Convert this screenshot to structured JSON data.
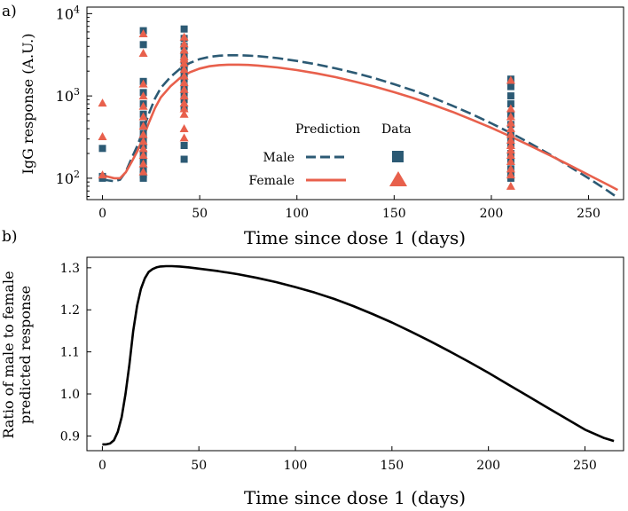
{
  "chart_data": [
    {
      "panel": "a)",
      "type": "line+scatter",
      "yscale": "log",
      "xlabel": "Time since dose 1 (days)",
      "ylabel": "IgG response (A.U.)",
      "xlim": [
        -8,
        268
      ],
      "ylim": [
        55,
        12000
      ],
      "xticks": [
        0,
        50,
        100,
        150,
        200,
        250
      ],
      "yticks": [
        {
          "value": 100,
          "base": "10",
          "exp": "2"
        },
        {
          "value": 1000,
          "base": "10",
          "exp": "3"
        },
        {
          "value": 10000,
          "base": "10",
          "exp": "4"
        }
      ],
      "legend": {
        "position": "center-right",
        "prediction_header": "Prediction",
        "data_header": "Data",
        "entries": [
          {
            "label": "Male",
            "line_style": "dashed",
            "marker": "square",
            "color": "#2c5a74"
          },
          {
            "label": "Female",
            "line_style": "solid",
            "marker": "triangle",
            "color": "#e8604c"
          }
        ]
      },
      "series": [
        {
          "name": "Male prediction",
          "color": "#2c5a74",
          "style": "dashed",
          "x": [
            0,
            3,
            6,
            9,
            12,
            15,
            18,
            21,
            24,
            27,
            30,
            35,
            40,
            45,
            50,
            55,
            60,
            65,
            70,
            75,
            80,
            90,
            100,
            110,
            120,
            130,
            140,
            150,
            160,
            170,
            180,
            190,
            200,
            210,
            220,
            230,
            240,
            250,
            260,
            265
          ],
          "y": [
            97,
            94,
            92,
            96,
            120,
            175,
            250,
            390,
            620,
            930,
            1250,
            1700,
            2150,
            2520,
            2800,
            2980,
            3080,
            3120,
            3120,
            3090,
            3040,
            2880,
            2660,
            2420,
            2160,
            1900,
            1640,
            1390,
            1160,
            950,
            760,
            600,
            465,
            355,
            265,
            195,
            140,
            100,
            70,
            58
          ]
        },
        {
          "name": "Female prediction",
          "color": "#e8604c",
          "style": "solid",
          "x": [
            0,
            3,
            6,
            9,
            12,
            15,
            18,
            21,
            24,
            27,
            30,
            35,
            40,
            45,
            50,
            55,
            60,
            65,
            70,
            75,
            80,
            90,
            100,
            110,
            120,
            130,
            140,
            150,
            160,
            170,
            180,
            190,
            200,
            210,
            220,
            230,
            240,
            250,
            260,
            265
          ],
          "y": [
            110,
            104,
            100,
            100,
            118,
            158,
            215,
            315,
            480,
            710,
            960,
            1310,
            1660,
            1940,
            2150,
            2290,
            2370,
            2400,
            2400,
            2380,
            2340,
            2220,
            2060,
            1880,
            1690,
            1490,
            1300,
            1110,
            940,
            780,
            640,
            515,
            410,
            320,
            248,
            190,
            145,
            110,
            83,
            72
          ]
        }
      ],
      "scatter": [
        {
          "name": "Male data",
          "marker": "square",
          "color": "#2c5a74",
          "x": [
            0,
            0,
            0,
            21,
            21,
            21,
            21,
            21,
            21,
            21,
            21,
            21,
            21,
            21,
            21,
            21,
            21,
            21,
            42,
            42,
            42,
            42,
            42,
            42,
            42,
            42,
            42,
            42,
            42,
            42,
            42,
            42,
            210,
            210,
            210,
            210,
            210,
            210,
            210,
            210,
            210,
            210,
            210,
            210,
            210,
            210
          ],
          "y": [
            230,
            100,
            105,
            6200,
            4200,
            1500,
            1100,
            800,
            600,
            450,
            350,
            300,
            250,
            200,
            160,
            130,
            110,
            100,
            6500,
            5000,
            4000,
            3200,
            2700,
            2200,
            1900,
            1600,
            1300,
            1100,
            900,
            700,
            170,
            250,
            1600,
            1300,
            1000,
            800,
            600,
            450,
            350,
            300,
            250,
            200,
            160,
            130,
            110,
            100
          ]
        },
        {
          "name": "Female data",
          "marker": "triangle",
          "color": "#e8604c",
          "x": [
            0,
            0,
            0,
            21,
            21,
            21,
            21,
            21,
            21,
            21,
            21,
            21,
            21,
            21,
            21,
            21,
            42,
            42,
            42,
            42,
            42,
            42,
            42,
            42,
            42,
            42,
            42,
            42,
            42,
            42,
            42,
            42,
            210,
            210,
            210,
            210,
            210,
            210,
            210,
            210,
            210,
            210,
            210,
            210,
            210,
            210
          ],
          "y": [
            820,
            320,
            110,
            5700,
            3300,
            1400,
            1000,
            750,
            560,
            430,
            340,
            280,
            230,
            190,
            150,
            120,
            5200,
            4300,
            3600,
            3000,
            2500,
            2100,
            1750,
            1450,
            1200,
            1000,
            820,
            700,
            600,
            400,
            310,
            2800,
            1550,
            700,
            560,
            470,
            400,
            340,
            290,
            250,
            220,
            190,
            160,
            130,
            110,
            80
          ]
        }
      ]
    },
    {
      "panel": "b)",
      "type": "line",
      "xlabel": "Time since dose 1 (days)",
      "ylabel": "Ratio of male to female predicted response",
      "ylabel_lines": [
        "Ratio of male to female",
        "predicted response"
      ],
      "xlim": [
        -8,
        270
      ],
      "ylim": [
        0.865,
        1.325
      ],
      "xticks": [
        0,
        50,
        100,
        150,
        200,
        250
      ],
      "yticks": [
        "0.9",
        "1.0",
        "1.1",
        "1.2",
        "1.3"
      ],
      "series": [
        {
          "name": "Ratio",
          "color": "#000000",
          "x": [
            0,
            2,
            4,
            6,
            8,
            10,
            12,
            14,
            16,
            18,
            20,
            22,
            24,
            26,
            28,
            30,
            33,
            36,
            40,
            45,
            50,
            60,
            70,
            80,
            90,
            100,
            110,
            120,
            130,
            140,
            150,
            160,
            170,
            180,
            190,
            200,
            210,
            220,
            230,
            240,
            250,
            260,
            265
          ],
          "y": [
            0.88,
            0.88,
            0.882,
            0.89,
            0.91,
            0.945,
            1.0,
            1.07,
            1.15,
            1.21,
            1.25,
            1.275,
            1.29,
            1.297,
            1.301,
            1.303,
            1.304,
            1.304,
            1.303,
            1.301,
            1.298,
            1.292,
            1.285,
            1.276,
            1.266,
            1.254,
            1.241,
            1.226,
            1.209,
            1.19,
            1.17,
            1.148,
            1.125,
            1.101,
            1.076,
            1.05,
            1.023,
            0.996,
            0.969,
            0.942,
            0.915,
            0.895,
            0.888
          ]
        }
      ]
    }
  ]
}
